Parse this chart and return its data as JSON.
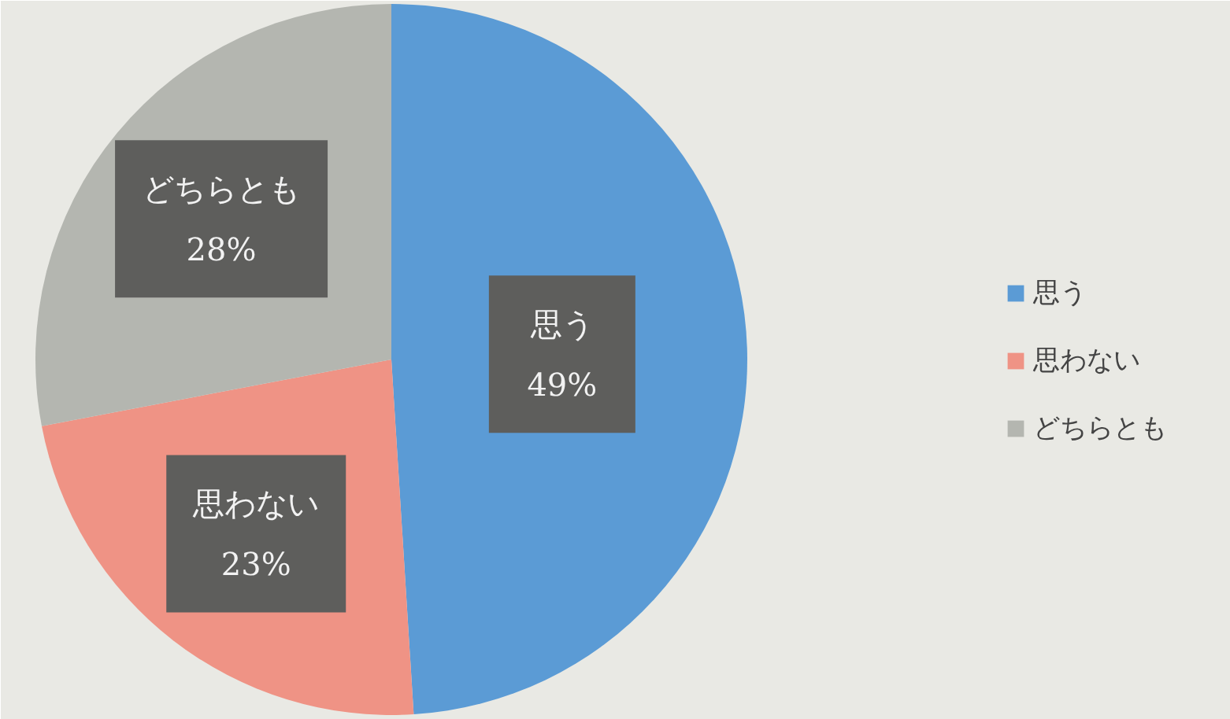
{
  "chart_data": {
    "type": "pie",
    "categories": [
      "思う",
      "思わない",
      "どちらとも"
    ],
    "values": [
      49,
      23,
      28
    ],
    "colors": [
      "#5b9bd5",
      "#ef9385",
      "#b4b6b0"
    ],
    "value_labels": [
      "49%",
      "23%",
      "28%"
    ],
    "legend": "right"
  }
}
